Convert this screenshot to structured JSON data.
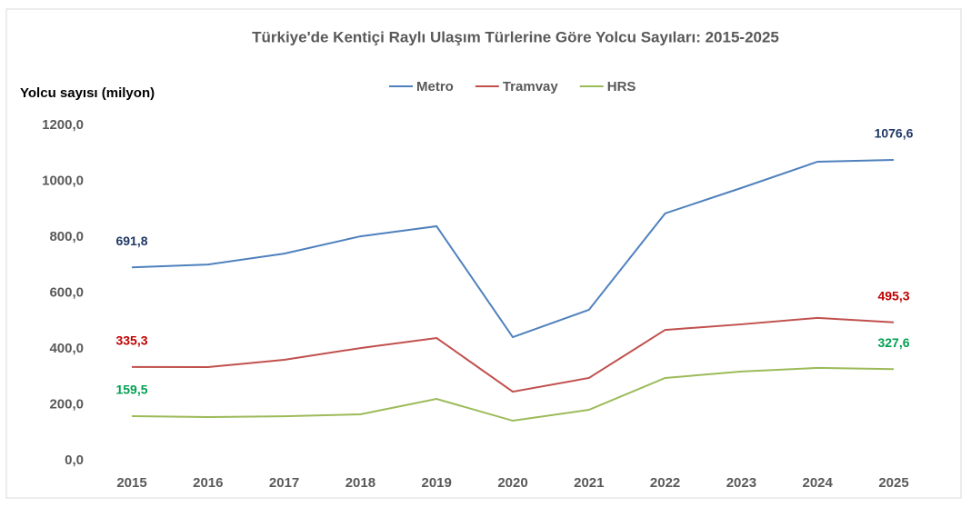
{
  "chart_data": {
    "type": "line",
    "title": "Türkiye'de Kentiçi Raylı Ulaşım Türlerine Göre Yolcu Sayıları: 2015-2025",
    "y_label": "Yolcu sayısı (milyon)",
    "categories": [
      "2015",
      "2016",
      "2017",
      "2018",
      "2019",
      "2020",
      "2021",
      "2022",
      "2023",
      "2024",
      "2025"
    ],
    "series": [
      {
        "name": "Metro",
        "color": "#4f81bd",
        "label_color": "#1f3864",
        "values": [
          691.8,
          702,
          741,
          803,
          839,
          442,
          540,
          885,
          976,
          1070,
          1076.6
        ],
        "value_labels": [
          "691,8",
          null,
          null,
          null,
          null,
          null,
          null,
          null,
          null,
          null,
          "1076,6"
        ]
      },
      {
        "name": "Tramvay",
        "color": "#c0504d",
        "label_color": "#c00000",
        "values": [
          335.3,
          335,
          361,
          403,
          439,
          247,
          296,
          468,
          488,
          511,
          495.3
        ],
        "value_labels": [
          "335,3",
          null,
          null,
          null,
          null,
          null,
          null,
          null,
          null,
          null,
          "495,3"
        ]
      },
      {
        "name": "HRS",
        "color": "#9bbb59",
        "label_color": "#00a050",
        "values": [
          159.5,
          156,
          159,
          166,
          221,
          143,
          182,
          296,
          319,
          332,
          327.6
        ],
        "value_labels": [
          "159,5",
          null,
          null,
          null,
          null,
          null,
          null,
          null,
          null,
          null,
          "327,6"
        ]
      }
    ],
    "ylim": [
      0,
      1200
    ],
    "yticks": [
      {
        "value": 0,
        "label": "0,0"
      },
      {
        "value": 200,
        "label": "200,0"
      },
      {
        "value": 400,
        "label": "400,0"
      },
      {
        "value": 600,
        "label": "600,0"
      },
      {
        "value": 800,
        "label": "800,0"
      },
      {
        "value": 1000,
        "label": "1000,0"
      },
      {
        "value": 1200,
        "label": "1200,0"
      }
    ],
    "grid": false,
    "legend": "top"
  }
}
